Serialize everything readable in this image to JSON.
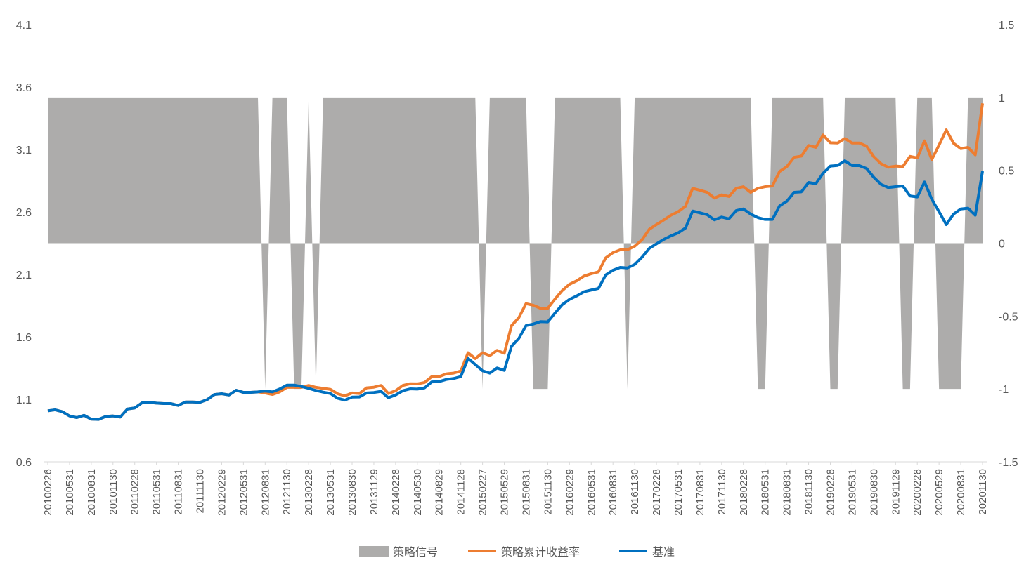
{
  "chart_data": {
    "type": "line",
    "title": "",
    "left_axis": {
      "min": 0.6,
      "max": 4.1,
      "step": 0.5,
      "ticks": [
        "0.6",
        "1.1",
        "1.6",
        "2.1",
        "2.6",
        "3.1",
        "3.6",
        "4.1"
      ]
    },
    "right_axis": {
      "min": -1.5,
      "max": 1.5,
      "step": 0.5,
      "ticks": [
        "-1.5",
        "-1",
        "-0.5",
        "0",
        "0.5",
        "1",
        "1.5"
      ]
    },
    "x_tick_labels": [
      "20100226",
      "20100531",
      "20100831",
      "20101130",
      "20110228",
      "20110531",
      "20110831",
      "20111130",
      "20120229",
      "20120531",
      "20120831",
      "20121130",
      "20130228",
      "20130531",
      "20130830",
      "20131129",
      "20140228",
      "20140530",
      "20140829",
      "20141128",
      "20150227",
      "20150529",
      "20150831",
      "20151130",
      "20160229",
      "20160531",
      "20160831",
      "20161130",
      "20170228",
      "20170531",
      "20170831",
      "20171130",
      "20180228",
      "20180531",
      "20180831",
      "20181130",
      "20190228",
      "20190531",
      "20190830",
      "20191129",
      "20200228",
      "20200529",
      "20200831",
      "20201130"
    ],
    "x_tick_every": 3,
    "legend_position": "bottom",
    "grid": false,
    "series": [
      {
        "name": "策略信号",
        "type": "area",
        "axis": "right",
        "color": "#ADACAB",
        "values": [
          1,
          1,
          1,
          1,
          1,
          1,
          1,
          1,
          1,
          1,
          1,
          1,
          1,
          1,
          1,
          1,
          1,
          1,
          1,
          1,
          1,
          1,
          1,
          1,
          1,
          1,
          1,
          1,
          1,
          1,
          -1,
          1,
          1,
          1,
          -1,
          -1,
          1,
          -1,
          1,
          1,
          1,
          1,
          1,
          1,
          1,
          1,
          1,
          1,
          1,
          1,
          1,
          1,
          1,
          1,
          1,
          1,
          1,
          1,
          1,
          1,
          -1,
          1,
          1,
          1,
          1,
          1,
          1,
          -1,
          -1,
          -1,
          1,
          1,
          1,
          1,
          1,
          1,
          1,
          1,
          1,
          1,
          -1,
          1,
          1,
          1,
          1,
          1,
          1,
          1,
          1,
          1,
          1,
          1,
          1,
          1,
          1,
          1,
          1,
          1,
          -1,
          -1,
          1,
          1,
          1,
          1,
          1,
          1,
          1,
          1,
          -1,
          -1,
          1,
          1,
          1,
          1,
          1,
          1,
          1,
          1,
          -1,
          -1,
          1,
          1,
          1,
          -1,
          -1,
          -1,
          -1,
          1,
          1,
          1
        ]
      },
      {
        "name": "策略累计收益率",
        "type": "line",
        "axis": "left",
        "color": "#ED7D31",
        "values": [
          1.008,
          1.016,
          1.001,
          0.967,
          0.954,
          0.972,
          0.941,
          0.939,
          0.963,
          0.967,
          0.958,
          1.023,
          1.031,
          1.072,
          1.076,
          1.07,
          1.066,
          1.066,
          1.051,
          1.079,
          1.079,
          1.076,
          1.098,
          1.139,
          1.145,
          1.135,
          1.173,
          1.156,
          1.156,
          1.16,
          1.151,
          1.139,
          1.16,
          1.196,
          1.196,
          1.196,
          1.211,
          1.196,
          1.188,
          1.18,
          1.145,
          1.128,
          1.151,
          1.147,
          1.192,
          1.197,
          1.211,
          1.147,
          1.169,
          1.211,
          1.225,
          1.224,
          1.235,
          1.282,
          1.282,
          1.304,
          1.31,
          1.327,
          1.473,
          1.426,
          1.473,
          1.45,
          1.492,
          1.469,
          1.69,
          1.753,
          1.866,
          1.853,
          1.829,
          1.829,
          1.903,
          1.971,
          2.021,
          2.049,
          2.087,
          2.106,
          2.121,
          2.233,
          2.274,
          2.297,
          2.298,
          2.326,
          2.377,
          2.461,
          2.499,
          2.535,
          2.574,
          2.602,
          2.645,
          2.789,
          2.774,
          2.757,
          2.711,
          2.737,
          2.724,
          2.789,
          2.802,
          2.757,
          2.789,
          2.802,
          2.808,
          2.924,
          2.963,
          3.038,
          3.047,
          3.132,
          3.117,
          3.216,
          3.154,
          3.152,
          3.188,
          3.152,
          3.152,
          3.126,
          3.042,
          2.986,
          2.958,
          2.967,
          2.963,
          3.045,
          3.033,
          3.169,
          3.02,
          3.135,
          3.257,
          3.15,
          3.107,
          3.117,
          3.057,
          3.469
        ]
      },
      {
        "name": "基准",
        "type": "line",
        "axis": "left",
        "color": "#0070C0",
        "values": [
          1.008,
          1.016,
          1.001,
          0.967,
          0.954,
          0.972,
          0.941,
          0.939,
          0.963,
          0.967,
          0.958,
          1.023,
          1.031,
          1.072,
          1.076,
          1.07,
          1.066,
          1.066,
          1.051,
          1.079,
          1.079,
          1.076,
          1.098,
          1.139,
          1.145,
          1.135,
          1.173,
          1.156,
          1.156,
          1.16,
          1.166,
          1.16,
          1.183,
          1.214,
          1.214,
          1.203,
          1.188,
          1.171,
          1.158,
          1.147,
          1.109,
          1.094,
          1.118,
          1.119,
          1.151,
          1.155,
          1.164,
          1.113,
          1.135,
          1.169,
          1.184,
          1.182,
          1.192,
          1.24,
          1.242,
          1.259,
          1.267,
          1.282,
          1.428,
          1.379,
          1.329,
          1.31,
          1.351,
          1.332,
          1.525,
          1.587,
          1.69,
          1.703,
          1.722,
          1.72,
          1.791,
          1.858,
          1.9,
          1.928,
          1.961,
          1.975,
          1.988,
          2.096,
          2.134,
          2.156,
          2.152,
          2.18,
          2.237,
          2.308,
          2.345,
          2.38,
          2.409,
          2.433,
          2.471,
          2.607,
          2.593,
          2.578,
          2.537,
          2.559,
          2.545,
          2.611,
          2.624,
          2.583,
          2.555,
          2.54,
          2.54,
          2.649,
          2.686,
          2.757,
          2.761,
          2.836,
          2.826,
          2.91,
          2.967,
          2.972,
          3.01,
          2.971,
          2.971,
          2.948,
          2.877,
          2.821,
          2.795,
          2.802,
          2.808,
          2.728,
          2.72,
          2.84,
          2.701,
          2.602,
          2.499,
          2.583,
          2.624,
          2.63,
          2.574,
          2.926
        ]
      }
    ]
  }
}
